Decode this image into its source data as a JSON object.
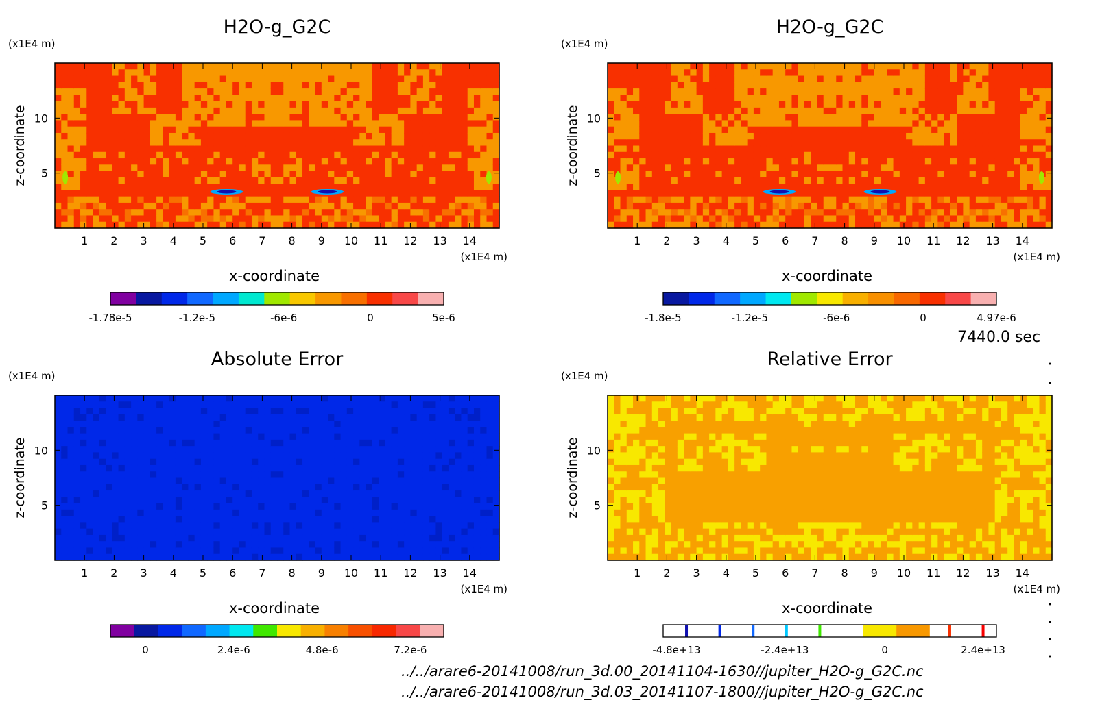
{
  "time_label": "7440.0 sec",
  "files": [
    "../../arare6-20141008/run_3d.00_20141104-1630//jupiter_H2O-g_G2C.nc",
    "../../arare6-20141008/run_3d.03_20141107-1800//jupiter_H2O-g_G2C.nc"
  ],
  "chart_data": [
    {
      "id": "p1",
      "type": "heatmap",
      "title": "H2O-g_G2C",
      "xlabel": "x-coordinate",
      "ylabel": "z-coordinate",
      "x_unit": "(x1E4 m)",
      "y_unit": "(x1E4 m)",
      "xlim": [
        0,
        15
      ],
      "ylim": [
        0,
        15
      ],
      "x_ticks": [
        1,
        2,
        3,
        4,
        5,
        6,
        7,
        8,
        9,
        10,
        11,
        12,
        13,
        14
      ],
      "y_ticks": [
        5,
        10
      ],
      "field_style": "mixing",
      "colors": [
        "#e8e8e8",
        "#8000a0",
        "#1010b0",
        "#0020e8",
        "#1060ff",
        "#00a8ff",
        "#00e8d8",
        "#a0e800",
        "#f8c800",
        "#f89800",
        "#f87000",
        "#f83000",
        "#f84848",
        "#f8b0b0"
      ],
      "colorbar_ticks": [
        "-1.78e-5",
        "-1.2e-5",
        "-6e-6",
        "0",
        "5e-6"
      ],
      "colorbar_tick_pos": [
        0,
        0.26,
        0.52,
        0.78,
        1.0
      ],
      "colorbar": [
        "#8000a0",
        "#0818a0",
        "#0028e8",
        "#1068ff",
        "#00a8ff",
        "#00e8d0",
        "#a0e800",
        "#f8c800",
        "#f89800",
        "#f87000",
        "#f83000",
        "#f84848",
        "#f8b0b0"
      ]
    },
    {
      "id": "p2",
      "type": "heatmap",
      "title": "H2O-g_G2C",
      "xlabel": "x-coordinate",
      "ylabel": "z-coordinate",
      "x_unit": "(x1E4 m)",
      "y_unit": "(x1E4 m)",
      "xlim": [
        0,
        15
      ],
      "ylim": [
        0,
        15
      ],
      "x_ticks": [
        1,
        2,
        3,
        4,
        5,
        6,
        7,
        8,
        9,
        10,
        11,
        12,
        13,
        14
      ],
      "y_ticks": [
        5,
        10
      ],
      "field_style": "mixing",
      "colorbar_ticks": [
        "-1.8e-5",
        "-1.2e-5",
        "-6e-6",
        "0",
        "4.97e-6"
      ],
      "colorbar_tick_pos": [
        0,
        0.26,
        0.52,
        0.78,
        1.0
      ],
      "colorbar": [
        "#0818a0",
        "#0028e8",
        "#1068ff",
        "#00a8ff",
        "#00e8f0",
        "#a0e800",
        "#f8e800",
        "#f8b000",
        "#f89000",
        "#f86800",
        "#f83000",
        "#f84848",
        "#f8b0b0"
      ]
    },
    {
      "id": "p3",
      "type": "heatmap",
      "title": "Absolute Error",
      "xlabel": "x-coordinate",
      "ylabel": "z-coordinate",
      "x_unit": "(x1E4 m)",
      "y_unit": "(x1E4 m)",
      "xlim": [
        0,
        15
      ],
      "ylim": [
        0,
        15
      ],
      "x_ticks": [
        1,
        2,
        3,
        4,
        5,
        6,
        7,
        8,
        9,
        10,
        11,
        12,
        13,
        14
      ],
      "y_ticks": [
        5,
        10
      ],
      "field_style": "abs",
      "colorbar_ticks": [
        "0",
        "2.4e-6",
        "4.8e-6",
        "7.2e-6"
      ],
      "colorbar_tick_pos": [
        0.105,
        0.37,
        0.635,
        0.9
      ],
      "colorbar": [
        "#8000a0",
        "#0818a0",
        "#0028e8",
        "#1068ff",
        "#00a8ff",
        "#00e8f0",
        "#40e800",
        "#f8e800",
        "#f8b000",
        "#f88000",
        "#f85000",
        "#f82800",
        "#f84848",
        "#f8b0b0"
      ]
    },
    {
      "id": "p4",
      "type": "heatmap",
      "title": "Relative Error",
      "xlabel": "x-coordinate",
      "ylabel": "z-coordinate",
      "x_unit": "(x1E4 m)",
      "y_unit": "(x1E4 m)",
      "xlim": [
        0,
        15
      ],
      "ylim": [
        0,
        15
      ],
      "x_ticks": [
        1,
        2,
        3,
        4,
        5,
        6,
        7,
        8,
        9,
        10,
        11,
        12,
        13,
        14
      ],
      "y_ticks": [
        5,
        10
      ],
      "field_style": "rel",
      "colorbar_ticks": [
        "-4.8e+13",
        "-2.4e+13",
        "0",
        "2.4e+13"
      ],
      "colorbar_tick_pos": [
        0.04,
        0.365,
        0.665,
        0.96
      ],
      "colorbar": [
        "#ffffff",
        "#ffffff",
        "#ffffff",
        "#ffffff",
        "#ffffff",
        "#ffffff",
        "#f8e800",
        "#f89800",
        "#ffffff",
        "#ffffff"
      ],
      "colorbar_marks": [
        {
          "pos": 0.07,
          "color": "#1010b0"
        },
        {
          "pos": 0.17,
          "color": "#0028e8"
        },
        {
          "pos": 0.27,
          "color": "#1068ff"
        },
        {
          "pos": 0.37,
          "color": "#00c8ff"
        },
        {
          "pos": 0.47,
          "color": "#40e800"
        },
        {
          "pos": 0.86,
          "color": "#f83000"
        },
        {
          "pos": 0.96,
          "color": "#f80000"
        }
      ]
    }
  ]
}
